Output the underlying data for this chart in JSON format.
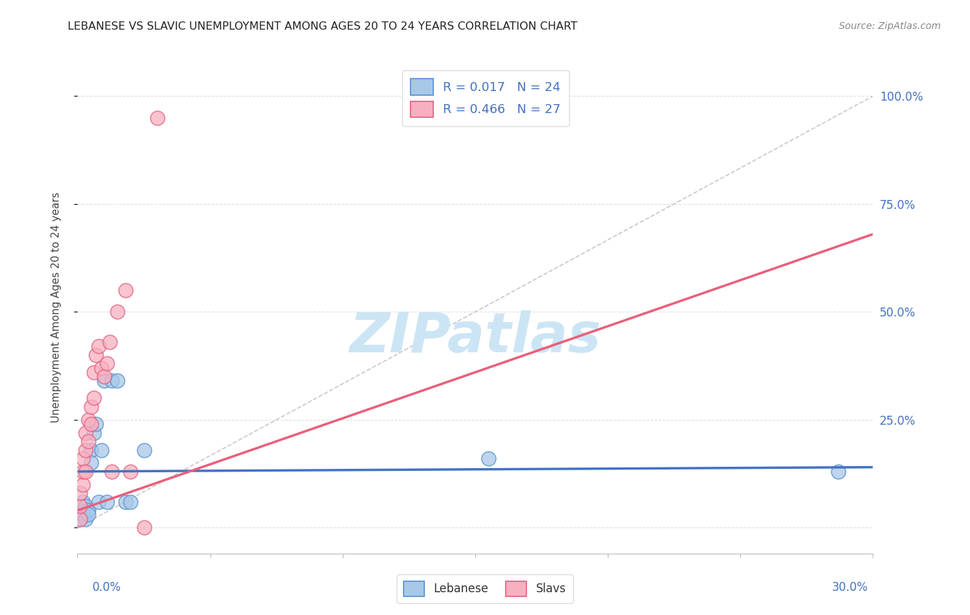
{
  "title": "LEBANESE VS SLAVIC UNEMPLOYMENT AMONG AGES 20 TO 24 YEARS CORRELATION CHART",
  "source": "Source: ZipAtlas.com",
  "ylabel": "Unemployment Among Ages 20 to 24 years",
  "xlim": [
    0.0,
    0.3
  ],
  "ylim": [
    -0.06,
    1.08
  ],
  "legend_r1": "R = 0.017",
  "legend_n1": "N = 24",
  "legend_r2": "R = 0.466",
  "legend_n2": "N = 27",
  "color_lebanese_fill": "#a8c8e8",
  "color_lebanese_edge": "#5590d0",
  "color_slavs_fill": "#f8b0c0",
  "color_slavs_edge": "#e06080",
  "color_line_lebanese": "#4472c4",
  "color_line_slavs": "#e8607a",
  "color_legend_text": "#4472c4",
  "color_ref_line": "#c8c8c8",
  "color_grid": "#e0e0e0",
  "background_color": "#ffffff",
  "watermark": "ZIPatlas",
  "watermark_color": "#cce5f5",
  "leb_line_y0": 0.13,
  "leb_line_y1": 0.14,
  "slav_line_y0": 0.04,
  "slav_line_y1": 0.68,
  "ref_line_x0": 0.0,
  "ref_line_y0": 0.0,
  "ref_line_x1": 0.3,
  "ref_line_y1": 1.0,
  "lebanese_x": [
    0.001,
    0.001,
    0.002,
    0.002,
    0.002,
    0.003,
    0.003,
    0.004,
    0.004,
    0.005,
    0.005,
    0.006,
    0.007,
    0.008,
    0.009,
    0.01,
    0.011,
    0.013,
    0.015,
    0.018,
    0.02,
    0.025,
    0.155,
    0.287
  ],
  "lebanese_y": [
    0.02,
    0.05,
    0.04,
    0.06,
    0.03,
    0.05,
    0.02,
    0.04,
    0.03,
    0.18,
    0.15,
    0.22,
    0.24,
    0.06,
    0.18,
    0.34,
    0.06,
    0.34,
    0.34,
    0.06,
    0.06,
    0.18,
    0.16,
    0.13
  ],
  "slavs_x": [
    0.001,
    0.001,
    0.001,
    0.002,
    0.002,
    0.002,
    0.003,
    0.003,
    0.003,
    0.004,
    0.004,
    0.005,
    0.005,
    0.006,
    0.006,
    0.007,
    0.008,
    0.009,
    0.01,
    0.011,
    0.012,
    0.013,
    0.015,
    0.018,
    0.02,
    0.025,
    0.03
  ],
  "slavs_y": [
    0.02,
    0.05,
    0.08,
    0.1,
    0.13,
    0.16,
    0.13,
    0.18,
    0.22,
    0.2,
    0.25,
    0.24,
    0.28,
    0.3,
    0.36,
    0.4,
    0.42,
    0.37,
    0.35,
    0.38,
    0.43,
    0.13,
    0.5,
    0.55,
    0.13,
    0.0,
    0.95
  ]
}
